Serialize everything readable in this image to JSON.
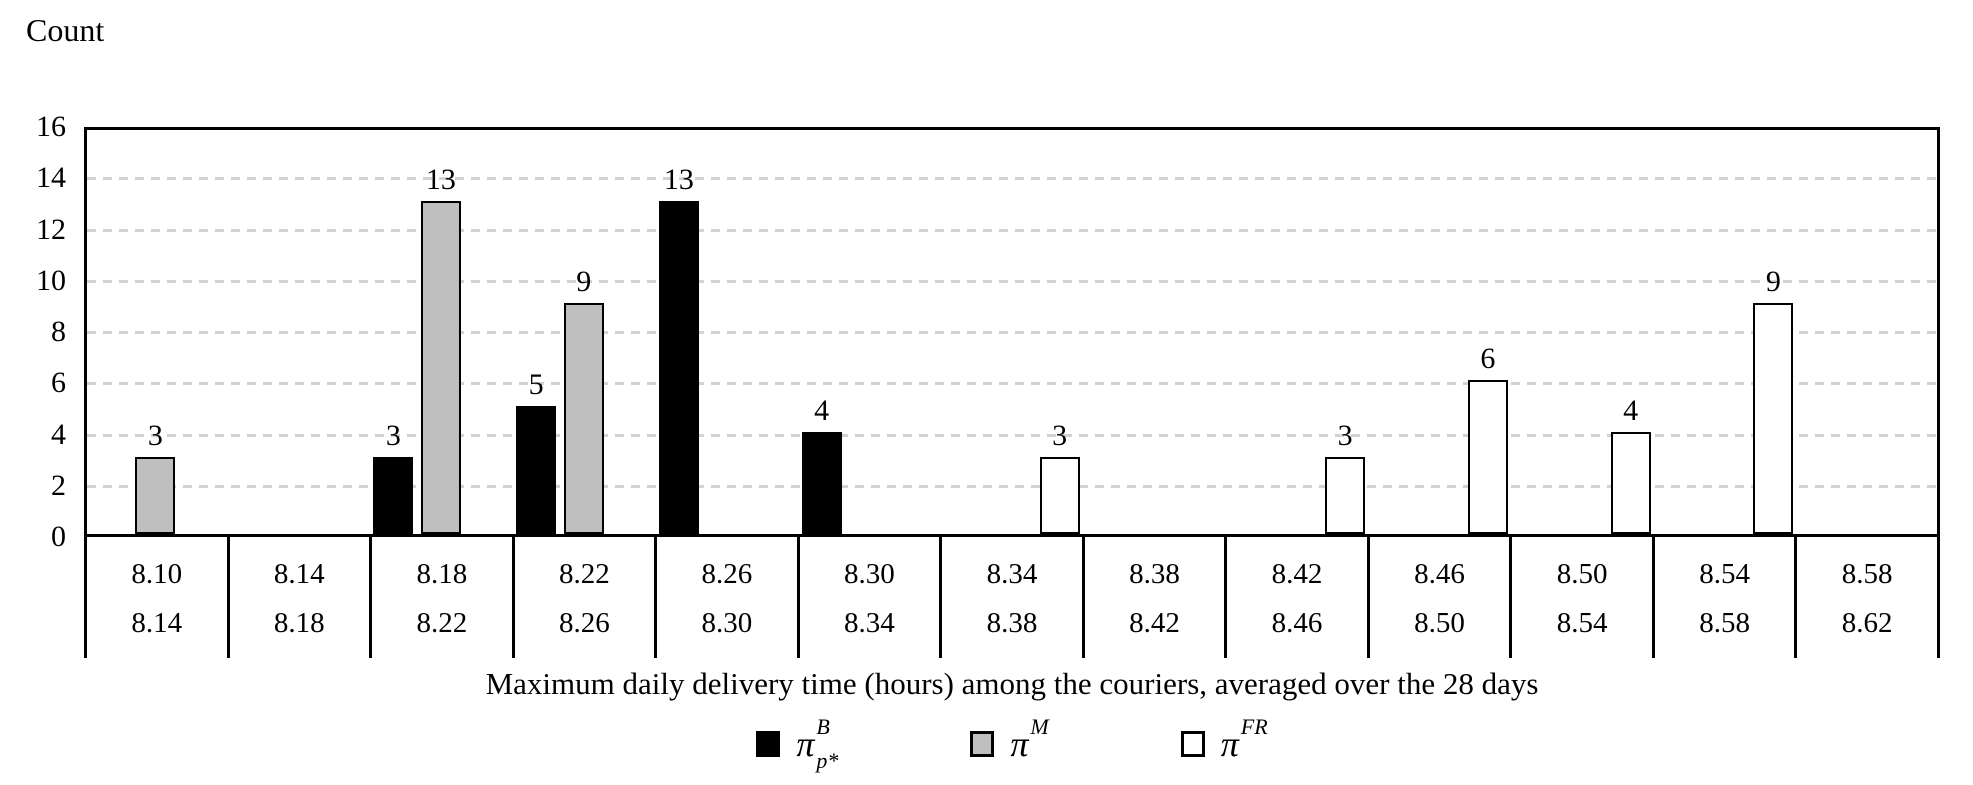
{
  "chart_data": {
    "type": "bar",
    "title": "Count",
    "ylabel": "Count",
    "xlabel": "Maximum daily delivery time (hours) among the couriers, averaged over the 28 days",
    "ylim": [
      0,
      16
    ],
    "ytick_step": 2,
    "yticks": [
      16,
      14,
      12,
      10,
      8,
      6,
      4,
      2,
      0
    ],
    "grid": "horizontal-dashed-gray",
    "legend_position": "bottom-center",
    "bin_lower_labels": [
      "8.10",
      "8.14",
      "8.18",
      "8.22",
      "8.26",
      "8.30",
      "8.34",
      "8.38",
      "8.42",
      "8.46",
      "8.50",
      "8.54",
      "8.58"
    ],
    "bin_upper_labels": [
      "8.14",
      "8.18",
      "8.22",
      "8.26",
      "8.30",
      "8.34",
      "8.38",
      "8.42",
      "8.46",
      "8.50",
      "8.54",
      "8.58",
      "8.62"
    ],
    "series": [
      {
        "name": "pi-B-pstar",
        "label": {
          "base": "π",
          "sup": "B",
          "sub": "p*"
        },
        "fill": "#000000",
        "values": [
          0,
          0,
          3,
          5,
          13,
          4,
          0,
          0,
          0,
          0,
          0,
          0,
          0
        ]
      },
      {
        "name": "pi-M",
        "label": {
          "base": "π",
          "sup": "M",
          "sub": ""
        },
        "fill": "#bfbfbf",
        "values": [
          3,
          0,
          13,
          9,
          0,
          0,
          0,
          0,
          0,
          0,
          0,
          0,
          0
        ]
      },
      {
        "name": "pi-FR",
        "label": {
          "base": "π",
          "sup": "FR",
          "sub": ""
        },
        "fill": "#ffffff",
        "values": [
          0,
          0,
          0,
          0,
          0,
          0,
          3,
          0,
          3,
          6,
          4,
          9,
          0
        ]
      }
    ],
    "colors": {
      "bar_outline": "#000000",
      "gridline": "#d2d2d2",
      "axis": "#000000",
      "background": "#ffffff"
    }
  }
}
